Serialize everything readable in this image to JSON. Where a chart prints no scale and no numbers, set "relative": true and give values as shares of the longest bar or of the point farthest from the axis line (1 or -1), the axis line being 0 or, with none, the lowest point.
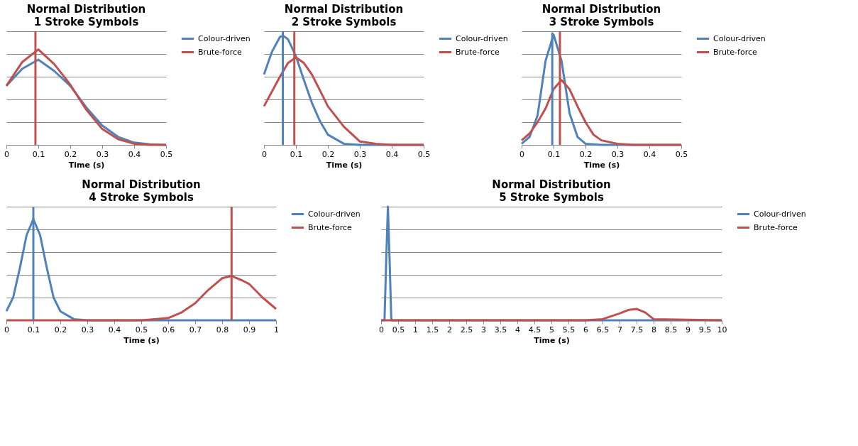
{
  "chart_data": [
    {
      "type": "line",
      "title": "Normal Distribution",
      "subtitle": "1 Stroke Symbols",
      "xlabel": "Time (s)",
      "relative": true,
      "grid": "y",
      "legend": "right",
      "xlim": [
        0,
        0.5
      ],
      "xticks": [
        0,
        0.1,
        0.2,
        0.3,
        0.4,
        0.5
      ],
      "line_style": "solid",
      "marker": "none",
      "series": [
        {
          "name": "Colour-driven",
          "color": "#4f81bd",
          "x": [
            0,
            0.05,
            0.1,
            0.15,
            0.2,
            0.25,
            0.3,
            0.35,
            0.4,
            0.45,
            0.5
          ],
          "values": [
            0.52,
            0.67,
            0.75,
            0.65,
            0.52,
            0.33,
            0.17,
            0.07,
            0.02,
            0.005,
            0
          ]
        },
        {
          "name": "Brute-force",
          "color": "#c0504d",
          "x": [
            0,
            0.05,
            0.1,
            0.15,
            0.2,
            0.25,
            0.3,
            0.35,
            0.4,
            0.45,
            0.5
          ],
          "values": [
            0.52,
            0.73,
            0.84,
            0.71,
            0.53,
            0.31,
            0.14,
            0.05,
            0.01,
            0,
            0
          ]
        },
        {
          "color": "#c0504d",
          "x": [
            0.091,
            0.091
          ],
          "values": [
            0,
            1
          ]
        }
      ]
    },
    {
      "type": "line",
      "title": "Normal Distribution",
      "subtitle": "2 Stroke Symbols",
      "xlabel": "Time (s)",
      "relative": true,
      "grid": "y",
      "legend": "right",
      "xlim": [
        0,
        0.5
      ],
      "xticks": [
        0,
        0.1,
        0.2,
        0.3,
        0.4,
        0.5
      ],
      "line_style": "solid",
      "marker": "none",
      "series": [
        {
          "name": "Colour-driven",
          "color": "#4f81bd",
          "x": [
            0,
            0.025,
            0.05,
            0.06,
            0.075,
            0.1,
            0.125,
            0.15,
            0.175,
            0.2,
            0.25,
            0.3,
            0.4,
            0.5
          ],
          "values": [
            0.62,
            0.82,
            0.95,
            0.96,
            0.93,
            0.78,
            0.57,
            0.37,
            0.21,
            0.09,
            0.01,
            0,
            0,
            0
          ]
        },
        {
          "name": "Brute-force",
          "color": "#c0504d",
          "x": [
            0,
            0.025,
            0.05,
            0.075,
            0.1,
            0.125,
            0.15,
            0.175,
            0.2,
            0.25,
            0.3,
            0.35,
            0.4,
            0.5
          ],
          "values": [
            0.34,
            0.47,
            0.6,
            0.72,
            0.77,
            0.72,
            0.62,
            0.48,
            0.34,
            0.16,
            0.03,
            0.01,
            0,
            0
          ]
        },
        {
          "color": "#4f81bd",
          "x": [
            0.059,
            0.059
          ],
          "values": [
            0,
            1
          ]
        },
        {
          "color": "#c0504d",
          "x": [
            0.095,
            0.095
          ],
          "values": [
            0,
            1
          ]
        }
      ]
    },
    {
      "type": "line",
      "title": "Normal Distribution",
      "subtitle": "3 Stroke Symbols",
      "xlabel": "Time (s)",
      "relative": true,
      "grid": "y",
      "legend": "right",
      "xlim": [
        0,
        0.5
      ],
      "xticks": [
        0,
        0.1,
        0.2,
        0.3,
        0.4,
        0.5
      ],
      "line_style": "solid",
      "marker": "none",
      "series": [
        {
          "name": "Colour-driven",
          "color": "#4f81bd",
          "x": [
            0,
            0.025,
            0.05,
            0.075,
            0.1,
            0.125,
            0.15,
            0.175,
            0.2,
            0.25,
            0.5
          ],
          "values": [
            0.01,
            0.07,
            0.26,
            0.74,
            0.97,
            0.74,
            0.28,
            0.07,
            0.01,
            0,
            0
          ]
        },
        {
          "name": "Brute-force",
          "color": "#c0504d",
          "x": [
            0,
            0.025,
            0.05,
            0.075,
            0.1,
            0.125,
            0.15,
            0.175,
            0.2,
            0.225,
            0.25,
            0.3,
            0.35,
            0.5
          ],
          "values": [
            0.04,
            0.1,
            0.2,
            0.32,
            0.49,
            0.57,
            0.49,
            0.34,
            0.2,
            0.09,
            0.04,
            0.01,
            0,
            0
          ]
        },
        {
          "color": "#4f81bd",
          "x": [
            0.096,
            0.096
          ],
          "values": [
            0,
            0.99
          ]
        },
        {
          "color": "#c0504d",
          "x": [
            0.12,
            0.12
          ],
          "values": [
            0,
            1
          ]
        }
      ]
    },
    {
      "type": "line",
      "title": "Normal Distribution",
      "subtitle": "4 Stroke Symbols",
      "xlabel": "Time (s)",
      "relative": true,
      "grid": "y",
      "legend": "right",
      "xlim": [
        0,
        1
      ],
      "xticks": [
        0,
        0.1,
        0.2,
        0.3,
        0.4,
        0.5,
        0.6,
        0.7,
        0.8,
        0.9,
        1
      ],
      "line_style": "solid",
      "marker": "none",
      "series": [
        {
          "name": "Colour-driven",
          "color": "#4f81bd",
          "x": [
            0,
            0.025,
            0.05,
            0.075,
            0.1,
            0.125,
            0.15,
            0.175,
            0.2,
            0.25,
            0.3,
            0.5,
            0.75,
            1
          ],
          "values": [
            0.08,
            0.2,
            0.46,
            0.75,
            0.89,
            0.75,
            0.46,
            0.2,
            0.08,
            0.01,
            0,
            0,
            0,
            0
          ]
        },
        {
          "name": "Brute-force",
          "color": "#c0504d",
          "x": [
            0,
            0.25,
            0.5,
            0.55,
            0.6,
            0.65,
            0.7,
            0.75,
            0.8,
            0.835,
            0.875,
            0.9,
            0.95,
            1
          ],
          "values": [
            0,
            0,
            0,
            0.01,
            0.02,
            0.07,
            0.15,
            0.27,
            0.37,
            0.39,
            0.35,
            0.32,
            0.2,
            0.1
          ]
        },
        {
          "color": "#4f81bd",
          "x": [
            0.1,
            0.1
          ],
          "values": [
            0,
            1
          ]
        },
        {
          "color": "#c0504d",
          "x": [
            0.835,
            0.835
          ],
          "values": [
            0,
            1
          ]
        }
      ]
    },
    {
      "type": "line",
      "title": "Normal Distribution",
      "subtitle": "5 Stroke Symbols",
      "xlabel": "Time (s)",
      "relative": true,
      "grid": "y",
      "legend": "right",
      "xlim": [
        0,
        10
      ],
      "xticks": [
        0,
        0.5,
        1,
        1.5,
        2,
        2.5,
        3,
        3.5,
        4,
        4.5,
        5,
        5.5,
        6,
        6.5,
        7,
        7.5,
        8,
        8.5,
        9,
        9.5,
        10
      ],
      "line_style": "solid",
      "marker": "none",
      "series": [
        {
          "name": "Colour-driven",
          "color": "#4f81bd",
          "x": [
            0,
            0.1,
            0.15,
            0.2,
            0.25,
            0.3,
            10
          ],
          "values": [
            0,
            0,
            0.53,
            1,
            0.53,
            0,
            0
          ]
        },
        {
          "name": "Brute-force",
          "color": "#c0504d",
          "x": [
            0,
            6,
            6.5,
            7,
            7.25,
            7.5,
            7.75,
            8,
            10
          ],
          "values": [
            0,
            0,
            0.01,
            0.06,
            0.09,
            0.1,
            0.07,
            0.01,
            0
          ]
        }
      ]
    }
  ]
}
